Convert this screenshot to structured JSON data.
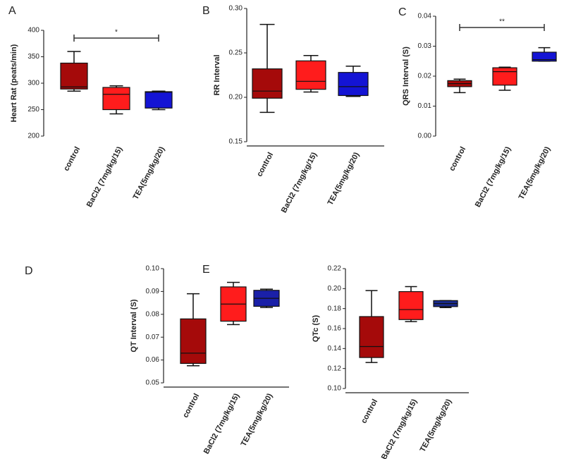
{
  "chart_data": [
    {
      "type": "box",
      "panel": "A",
      "ylabel": "Heart Rat (peats/min)",
      "categories": [
        "control",
        "BaCl2 (7mg/kg/15)",
        "TEA(5mg/kg/20)"
      ],
      "boxes": [
        {
          "min": 285,
          "q1": 289,
          "median": 293,
          "q3": 338,
          "max": 360,
          "color": "#a50a0a"
        },
        {
          "min": 242,
          "q1": 250,
          "median": 279,
          "q3": 292,
          "max": 295,
          "color": "#ff1c1c"
        },
        {
          "min": 250,
          "q1": 253,
          "median": 283,
          "q3": 284,
          "max": 285,
          "color": "#1414d4"
        }
      ],
      "ylim": [
        200,
        400
      ],
      "yticks": [
        200,
        250,
        300,
        350,
        400
      ],
      "annotation": "*"
    },
    {
      "type": "box",
      "panel": "B",
      "ylabel": "RR Interval",
      "categories": [
        "control",
        "BaCl2 (7mg/kg/15)",
        "TEA(5mg/kg/20)"
      ],
      "boxes": [
        {
          "min": 0.183,
          "q1": 0.199,
          "median": 0.207,
          "q3": 0.232,
          "max": 0.282,
          "color": "#a50a0a"
        },
        {
          "min": 0.206,
          "q1": 0.209,
          "median": 0.218,
          "q3": 0.241,
          "max": 0.247,
          "color": "#ff1c1c"
        },
        {
          "min": 0.201,
          "q1": 0.202,
          "median": 0.212,
          "q3": 0.228,
          "max": 0.235,
          "color": "#1414d4"
        }
      ],
      "ylim": [
        0.15,
        0.3
      ],
      "yticks": [
        0.15,
        {
          "value": 0.2,
          "label": "0.20"
        },
        0.25,
        {
          "value": 0.3,
          "label": "0.30"
        }
      ]
    },
    {
      "type": "box",
      "panel": "C",
      "ylabel": "QRS Interval (S)",
      "categories": [
        "control",
        "BaCl2 (7mg/kg/15)",
        "TEA(5mg/kg/20)"
      ],
      "boxes": [
        {
          "min": 0.0145,
          "q1": 0.0165,
          "median": 0.0175,
          "q3": 0.0185,
          "max": 0.019,
          "color": "#a50a0a"
        },
        {
          "min": 0.0153,
          "q1": 0.017,
          "median": 0.0215,
          "q3": 0.0228,
          "max": 0.023,
          "color": "#ff1c1c"
        },
        {
          "min": 0.025,
          "q1": 0.025,
          "median": 0.0255,
          "q3": 0.028,
          "max": 0.0295,
          "color": "#1414d4"
        }
      ],
      "ylim": [
        0,
        0.04
      ],
      "yticks": [
        {
          "value": 0,
          "label": "0.00"
        },
        0.01,
        0.02,
        0.03,
        0.04
      ],
      "annotation": "**"
    },
    {
      "type": "box",
      "panel": "D",
      "ylabel": "QT Interval (S)",
      "categories": [
        "control",
        "BaCl2 (7mg/kg/15)",
        "TEA(5mg/kg/20)"
      ],
      "boxes": [
        {
          "min": 0.0575,
          "q1": 0.0585,
          "median": 0.063,
          "q3": 0.078,
          "max": 0.089,
          "color": "#a50a0a"
        },
        {
          "min": 0.0755,
          "q1": 0.077,
          "median": 0.0845,
          "q3": 0.092,
          "max": 0.094,
          "color": "#ff1c1c"
        },
        {
          "min": 0.083,
          "q1": 0.0835,
          "median": 0.087,
          "q3": 0.0905,
          "max": 0.091,
          "color": "#1a20a8"
        }
      ],
      "ylim": [
        0.05,
        0.1
      ],
      "yticks": [
        0.05,
        0.06,
        0.07,
        0.08,
        0.09,
        {
          "value": 0.1,
          "label": "0.10"
        }
      ]
    },
    {
      "type": "box",
      "panel": "E",
      "ylabel": "QTc (S)",
      "categories": [
        "control",
        "BaCl2 (7mg/kg/15)",
        "TEA(5mg/kg/20)"
      ],
      "boxes": [
        {
          "min": 0.126,
          "q1": 0.131,
          "median": 0.142,
          "q3": 0.172,
          "max": 0.198,
          "color": "#a50a0a"
        },
        {
          "min": 0.167,
          "q1": 0.169,
          "median": 0.179,
          "q3": 0.197,
          "max": 0.202,
          "color": "#ff1c1c"
        },
        {
          "min": 0.181,
          "q1": 0.182,
          "median": 0.185,
          "q3": 0.188,
          "max": 0.188,
          "color": "#1a2a8a"
        }
      ],
      "ylim": [
        0.1,
        0.22
      ],
      "yticks": [
        {
          "value": 0.1,
          "label": "0.10"
        },
        0.12,
        0.14,
        0.16,
        0.18,
        {
          "value": 0.2,
          "label": "0.20"
        },
        0.22
      ]
    }
  ]
}
